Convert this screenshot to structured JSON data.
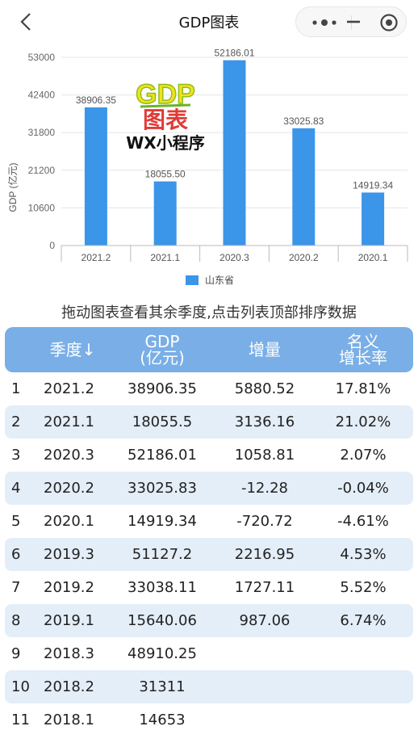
{
  "nav": {
    "title": "GDP图表",
    "icons": {
      "back": "back-chevron-icon",
      "more": "more-dots-icon",
      "minimize": "minimize-icon",
      "close": "target-close-icon"
    }
  },
  "chart_data": {
    "type": "bar",
    "ylabel": "GDP (亿元)",
    "ylim": [
      0,
      53000
    ],
    "yticks": [
      "53000",
      "42400",
      "31800",
      "21200",
      "10600",
      "0"
    ],
    "categories": [
      "2021.2",
      "2021.1",
      "2020.3",
      "2020.2",
      "2020.1"
    ],
    "values": [
      38906.35,
      18055.5,
      52186.01,
      33025.83,
      14919.34
    ],
    "value_labels": [
      "38906.35",
      "18055.50",
      "52186.01",
      "33025.83",
      "14919.34"
    ],
    "series": [
      {
        "name": "山东省",
        "values": [
          38906.35,
          18055.5,
          52186.01,
          33025.83,
          14919.34
        ]
      }
    ],
    "legend_position": "bottom-center",
    "grid": true,
    "bar_color": "#3b95e8",
    "watermark": {
      "line1": "GDP",
      "line2": "图表",
      "line3": "WX小程序"
    }
  },
  "hint": "拖动图表查看其余季度,点击列表顶部排序数据",
  "table": {
    "headers": {
      "quarter": "季度↓",
      "gdp_line1": "GDP",
      "gdp_line2": "(亿元)",
      "increase": "增量",
      "rate_line1": "名义",
      "rate_line2": "增长率"
    },
    "header_color": "#7aaee6",
    "alt_row_color": "#e4eef8",
    "rows": [
      {
        "idx": "1",
        "quarter": "2021.2",
        "gdp": "38906.35",
        "increase": "5880.52",
        "rate": "17.81%"
      },
      {
        "idx": "2",
        "quarter": "2021.1",
        "gdp": "18055.5",
        "increase": "3136.16",
        "rate": "21.02%"
      },
      {
        "idx": "3",
        "quarter": "2020.3",
        "gdp": "52186.01",
        "increase": "1058.81",
        "rate": "2.07%"
      },
      {
        "idx": "4",
        "quarter": "2020.2",
        "gdp": "33025.83",
        "increase": "-12.28",
        "rate": "-0.04%"
      },
      {
        "idx": "5",
        "quarter": "2020.1",
        "gdp": "14919.34",
        "increase": "-720.72",
        "rate": "-4.61%"
      },
      {
        "idx": "6",
        "quarter": "2019.3",
        "gdp": "51127.2",
        "increase": "2216.95",
        "rate": "4.53%"
      },
      {
        "idx": "7",
        "quarter": "2019.2",
        "gdp": "33038.11",
        "increase": "1727.11",
        "rate": "5.52%"
      },
      {
        "idx": "8",
        "quarter": "2019.1",
        "gdp": "15640.06",
        "increase": "987.06",
        "rate": "6.74%"
      },
      {
        "idx": "9",
        "quarter": "2018.3",
        "gdp": "48910.25",
        "increase": "",
        "rate": ""
      },
      {
        "idx": "10",
        "quarter": "2018.2",
        "gdp": "31311",
        "increase": "",
        "rate": ""
      },
      {
        "idx": "11",
        "quarter": "2018.1",
        "gdp": "14653",
        "increase": "",
        "rate": ""
      }
    ]
  }
}
